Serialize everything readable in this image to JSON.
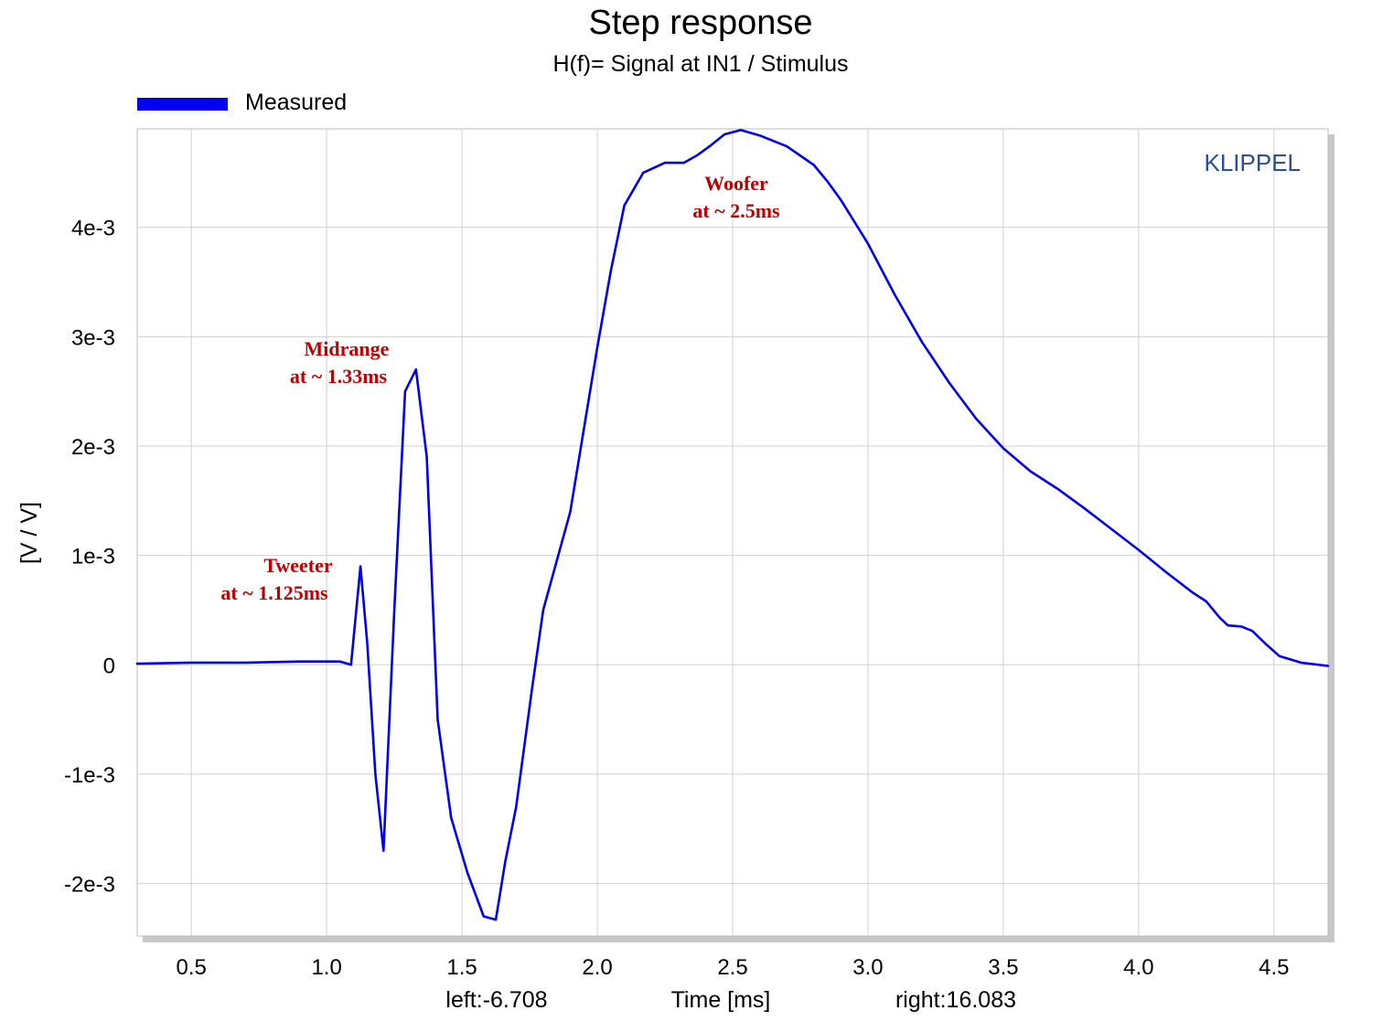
{
  "chart_data": {
    "type": "line",
    "title": "Step response",
    "subtitle": "H(f)= Signal at IN1 / Stimulus",
    "xlabel": "Time [ms]",
    "ylabel": "[V / V]",
    "xlim": [
      0.3,
      4.7
    ],
    "ylim": [
      -0.00248,
      0.0049
    ],
    "x_ticks": [
      {
        "value": 0.5,
        "label": "0.5"
      },
      {
        "value": 1.0,
        "label": "1.0"
      },
      {
        "value": 1.5,
        "label": "1.5"
      },
      {
        "value": 2.0,
        "label": "2.0"
      },
      {
        "value": 2.5,
        "label": "2.5"
      },
      {
        "value": 3.0,
        "label": "3.0"
      },
      {
        "value": 3.5,
        "label": "3.5"
      },
      {
        "value": 4.0,
        "label": "4.0"
      },
      {
        "value": 4.5,
        "label": "4.5"
      }
    ],
    "y_ticks": [
      {
        "value": -0.002,
        "label": "-2e-3"
      },
      {
        "value": -0.001,
        "label": "-1e-3"
      },
      {
        "value": 0,
        "label": "0"
      },
      {
        "value": 0.001,
        "label": "1e-3"
      },
      {
        "value": 0.002,
        "label": "2e-3"
      },
      {
        "value": 0.003,
        "label": "3e-3"
      },
      {
        "value": 0.004,
        "label": "4e-3"
      }
    ],
    "grid": true,
    "legend_position": "top-left",
    "series": [
      {
        "name": "Measured",
        "color": "#0000ee",
        "x": [
          0.3,
          0.5,
          0.7,
          0.9,
          1.05,
          1.09,
          1.125,
          1.15,
          1.18,
          1.21,
          1.25,
          1.29,
          1.33,
          1.37,
          1.41,
          1.46,
          1.52,
          1.58,
          1.625,
          1.66,
          1.7,
          1.76,
          1.8,
          1.9,
          2.0,
          2.05,
          2.1,
          2.17,
          2.25,
          2.32,
          2.37,
          2.42,
          2.47,
          2.53,
          2.6,
          2.7,
          2.8,
          2.85,
          2.9,
          3.0,
          3.1,
          3.2,
          3.3,
          3.4,
          3.5,
          3.6,
          3.7,
          3.8,
          3.9,
          4.0,
          4.1,
          4.2,
          4.25,
          4.3,
          4.33,
          4.38,
          4.42,
          4.47,
          4.52,
          4.6,
          4.7
        ],
        "y": [
          1e-05,
          2e-05,
          2e-05,
          3e-05,
          3e-05,
          0.0,
          0.0009,
          0.0002,
          -0.001,
          -0.0017,
          0.0005,
          0.0025,
          0.0027,
          0.0019,
          -0.0005,
          -0.0014,
          -0.0019,
          -0.0023,
          -0.00233,
          -0.0018,
          -0.0013,
          -0.0002,
          0.0005,
          0.0014,
          0.0029,
          0.0036,
          0.0042,
          0.0045,
          0.00459,
          0.00459,
          0.00466,
          0.00475,
          0.00485,
          0.00489,
          0.00484,
          0.00474,
          0.00457,
          0.00442,
          0.00425,
          0.00385,
          0.00338,
          0.00295,
          0.00258,
          0.00225,
          0.00198,
          0.00177,
          0.00161,
          0.00143,
          0.00124,
          0.00105,
          0.00085,
          0.00066,
          0.00058,
          0.00043,
          0.00036,
          0.00035,
          0.00031,
          0.00019,
          8e-05,
          2e-05,
          -1e-05
        ]
      }
    ],
    "annotations": [
      {
        "lines": [
          "Tweeter",
          "at ~ 1.125ms"
        ]
      },
      {
        "lines": [
          "Midrange",
          "at ~ 1.33ms"
        ]
      },
      {
        "lines": [
          "Woofer",
          "at ~ 2.5ms"
        ]
      }
    ]
  },
  "footer": {
    "left_label": "left:-6.708",
    "right_label": "right:16.083"
  },
  "brand": "KLIPPEL"
}
